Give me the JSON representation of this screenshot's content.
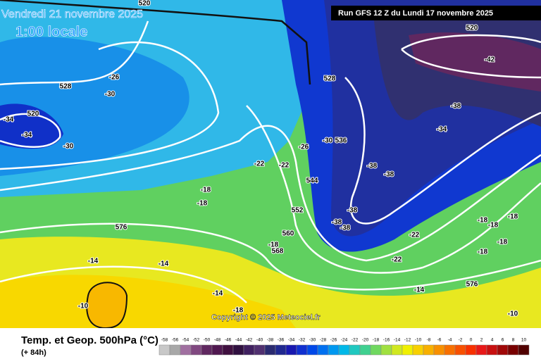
{
  "header": {
    "date": "Vendredi 21 novembre 2025",
    "time": "1:00 locale",
    "run": "Run GFS 12 Z du Lundi 17 novembre 2025"
  },
  "contours": [
    "520",
    "520",
    "528",
    "-26",
    "-30",
    "520",
    "-34",
    "-34",
    "-30",
    "528",
    "-42",
    "-38",
    "-34",
    "-30",
    "536",
    "-26",
    "-22",
    "-22",
    "-38",
    "-38",
    "544",
    "-18",
    "-18",
    "552",
    "-38",
    "-38",
    "-38",
    "576",
    "560",
    "-18",
    "568",
    "-22",
    "-18",
    "-18",
    "-18",
    "-18",
    "-18",
    "-22",
    "-14",
    "-14",
    "-14",
    "576",
    "-14",
    "-10",
    "-18",
    "-10"
  ],
  "copyright": "Copyright © 2025 Meteociel.fr",
  "footer": {
    "title": "Temp. et Geop. 500hPa (°C)",
    "step": "(+ 84h)"
  },
  "legend": {
    "values": [
      -58,
      -56,
      -54,
      -52,
      -50,
      -48,
      -46,
      -44,
      -42,
      -40,
      -38,
      -36,
      -34,
      -32,
      -30,
      -28,
      -26,
      -24,
      -22,
      -20,
      -18,
      -16,
      -14,
      -12,
      -10,
      -8,
      -6,
      -4,
      -2,
      0,
      2,
      4,
      6,
      8,
      10
    ],
    "colors": [
      "#c8c8c8",
      "#a8a8a8",
      "#a070a0",
      "#804880",
      "#602860",
      "#501850",
      "#401040",
      "#301040",
      "#402060",
      "#503070",
      "#2a2a70",
      "#202890",
      "#1818b0",
      "#1030d0",
      "#0048e8",
      "#0070f0",
      "#0098f0",
      "#00b8e8",
      "#20c8c0",
      "#40d090",
      "#70d860",
      "#a0e040",
      "#d0e820",
      "#f0f000",
      "#f8d000",
      "#f8b000",
      "#f89000",
      "#f87000",
      "#f85000",
      "#f83000",
      "#e81818",
      "#c81010",
      "#a00808",
      "#780000",
      "#500000"
    ]
  }
}
